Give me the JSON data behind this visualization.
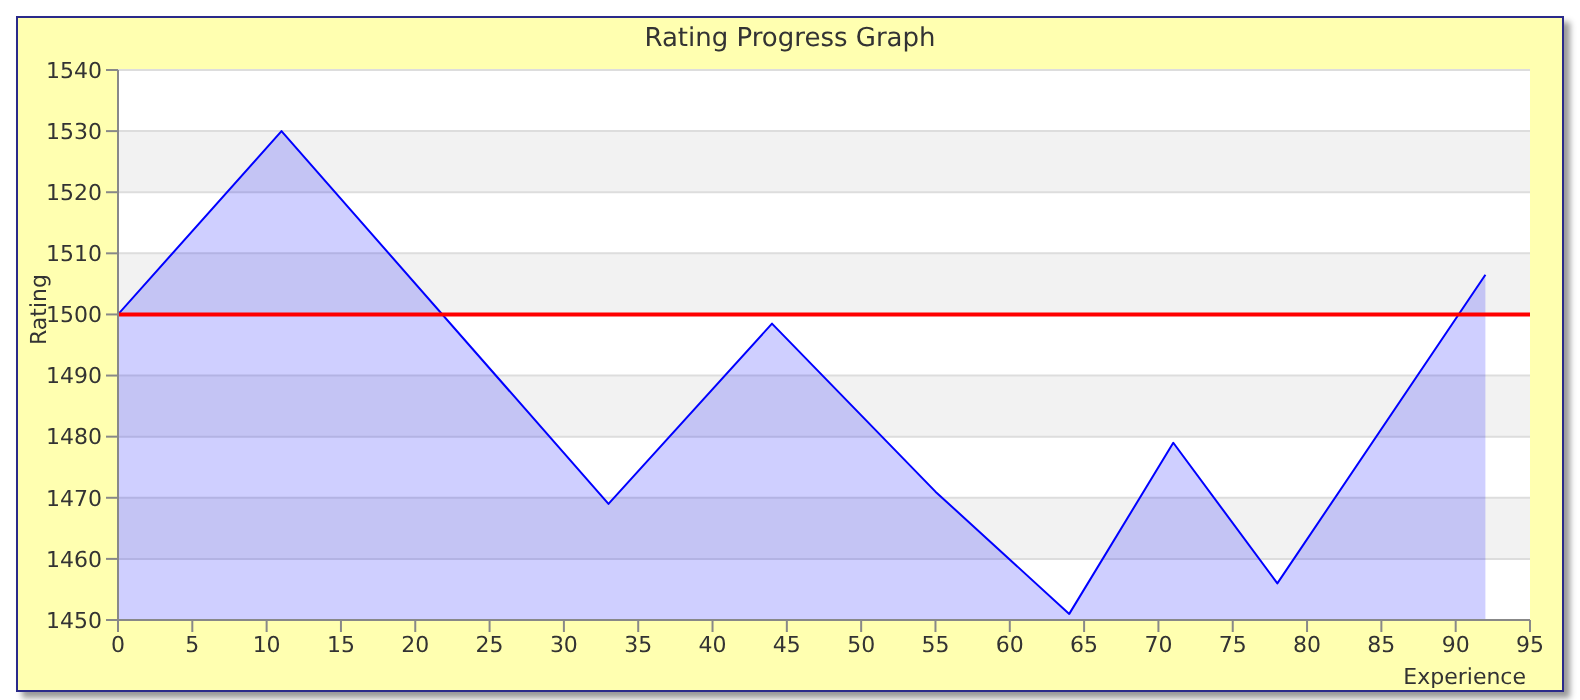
{
  "chart_data": {
    "type": "area",
    "title": "Rating Progress Graph",
    "xlabel": "Experience",
    "ylabel": "Rating",
    "x": [
      0,
      11,
      33,
      44,
      55,
      64,
      71,
      78,
      92
    ],
    "series": [
      {
        "color": "#0000ff",
        "values": [
          1500,
          1530,
          1469,
          1498.5,
          1471,
          1451,
          1479,
          1456,
          1506.5
        ]
      }
    ],
    "xlim": [
      0,
      95
    ],
    "xticks": [
      0,
      5,
      10,
      15,
      20,
      25,
      30,
      35,
      40,
      45,
      50,
      55,
      60,
      65,
      70,
      75,
      80,
      85,
      90,
      95
    ],
    "ylim": [
      1450,
      1540
    ],
    "yticks": [
      1450,
      1460,
      1470,
      1480,
      1490,
      1500,
      1510,
      1520,
      1530,
      1540
    ],
    "ref_lines": [
      {
        "axis": "y",
        "value": 1500,
        "color": "#ff0000"
      }
    ],
    "grid": "y",
    "legend": false,
    "marker": "none",
    "line_style": "solid"
  }
}
